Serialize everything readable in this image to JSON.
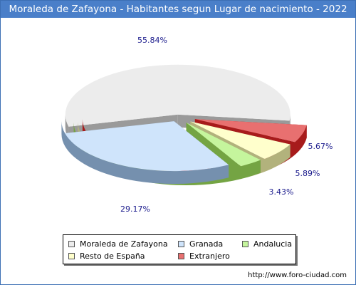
{
  "title": "Moraleda de Zafayona - Habitantes segun Lugar de nacimiento - 2022",
  "footer": "http://www.foro-ciudad.com",
  "chart_data": {
    "type": "pie",
    "title": "Moraleda de Zafayona - Habitantes segun Lugar de nacimiento - 2022",
    "slices": [
      {
        "label": "Moraleda de Zafayona",
        "value": 55.84,
        "display": "55.84%",
        "color": "#ececec",
        "side": "#9a9a9a"
      },
      {
        "label": "Granada",
        "value": 29.17,
        "display": "29.17%",
        "color": "#cfe4fb",
        "side": "#7590ae"
      },
      {
        "label": "Andalucia",
        "value": 3.43,
        "display": "3.43%",
        "color": "#c5f59d",
        "side": "#74a443"
      },
      {
        "label": "Resto de España",
        "value": 5.89,
        "display": "5.89%",
        "color": "#ffffcc",
        "side": "#b2b27c"
      },
      {
        "label": "Extranjero",
        "value": 5.67,
        "display": "5.67%",
        "color": "#e87070",
        "side": "#a71b1b"
      }
    ],
    "legend_position": "bottom"
  },
  "legend": [
    {
      "label": "Moraleda de Zafayona",
      "color": "#ececec"
    },
    {
      "label": "Granada",
      "color": "#cfe4fb"
    },
    {
      "label": "Andalucia",
      "color": "#c5f59d"
    },
    {
      "label": "Resto de España",
      "color": "#ffffcc"
    },
    {
      "label": "Extranjero",
      "color": "#e87070"
    }
  ]
}
